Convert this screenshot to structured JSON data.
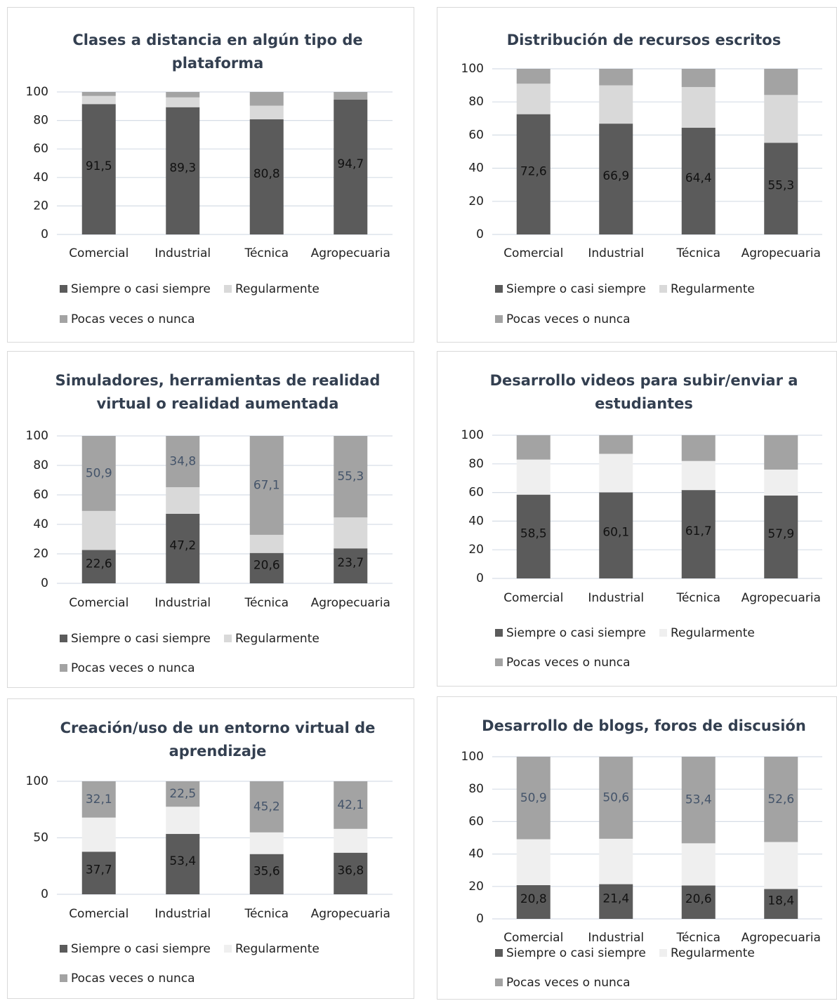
{
  "chart_data": [
    {
      "type": "bar",
      "stacked": true,
      "title": "Clases a distancia en algún tipo de plataforma",
      "categories": [
        "Comercial",
        "Industrial",
        "Técnica",
        "Agropecuaria"
      ],
      "series": [
        {
          "name": "Siempre o casi siempre",
          "color": "#5b5b5b",
          "values": [
            91.5,
            89.3,
            80.8,
            94.7
          ],
          "value_labels": [
            "91,5",
            "89,3",
            "80,8",
            "94,7"
          ]
        },
        {
          "name": "Regularmente",
          "color": "#d9d9d9",
          "values": [
            5.7,
            6.9,
            9.6,
            0
          ]
        },
        {
          "name": "Pocas veces o nunca",
          "color": "#a3a3a3",
          "values": [
            2.8,
            3.8,
            9.6,
            5.3
          ]
        }
      ],
      "ylim": [
        0,
        100
      ],
      "yticks": [
        0,
        20,
        40,
        60,
        80,
        100
      ],
      "grid": true
    },
    {
      "type": "bar",
      "stacked": true,
      "title": "Distribución de recursos escritos",
      "categories": [
        "Comercial",
        "Industrial",
        "Técnica",
        "Agropecuaria"
      ],
      "series": [
        {
          "name": "Siempre o casi siempre",
          "color": "#5b5b5b",
          "values": [
            72.6,
            66.9,
            64.4,
            55.3
          ],
          "value_labels": [
            "72,6",
            "66,9",
            "64,4",
            "55,3"
          ]
        },
        {
          "name": "Regularmente",
          "color": "#d9d9d9",
          "values": [
            18.4,
            23.1,
            24.6,
            28.9
          ]
        },
        {
          "name": "Pocas veces o nunca",
          "color": "#a3a3a3",
          "values": [
            9,
            10,
            11,
            15.8
          ]
        }
      ],
      "ylim": [
        0,
        100
      ],
      "yticks": [
        0,
        20,
        40,
        60,
        80,
        100
      ],
      "grid": true
    },
    {
      "type": "bar",
      "stacked": true,
      "title": "Simuladores, herramientas de realidad virtual o realidad aumentada",
      "categories": [
        "Comercial",
        "Industrial",
        "Técnica",
        "Agropecuaria"
      ],
      "series": [
        {
          "name": "Siempre o casi siempre",
          "color": "#5b5b5b",
          "values": [
            22.6,
            47.2,
            20.6,
            23.7
          ],
          "value_labels": [
            "22,6",
            "47,2",
            "20,6",
            "23,7"
          ]
        },
        {
          "name": "Regularmente",
          "color": "#d9d9d9",
          "values": [
            26.5,
            18.0,
            12.3,
            21.0
          ]
        },
        {
          "name": "Pocas veces o nunca",
          "color": "#a3a3a3",
          "values": [
            50.9,
            34.8,
            67.1,
            55.3
          ],
          "value_labels": [
            "50,9",
            "34,8",
            "67,1",
            "55,3"
          ]
        }
      ],
      "ylim": [
        0,
        100
      ],
      "yticks": [
        0,
        20,
        40,
        60,
        80,
        100
      ],
      "grid": true
    },
    {
      "type": "bar",
      "stacked": true,
      "title": "Desarrollo videos para subir/enviar a estudiantes",
      "categories": [
        "Comercial",
        "Industrial",
        "Técnica",
        "Agropecuaria"
      ],
      "series": [
        {
          "name": "Siempre o casi siempre",
          "color": "#5b5b5b",
          "values": [
            58.5,
            60.1,
            61.7,
            57.9
          ],
          "value_labels": [
            "58,5",
            "60,1",
            "61,7",
            "57,9"
          ]
        },
        {
          "name": "Regularmente",
          "color": "#efefef",
          "values": [
            24.5,
            26.9,
            20.3,
            18.1
          ]
        },
        {
          "name": "Pocas veces o nunca",
          "color": "#a3a3a3",
          "values": [
            17,
            13,
            18,
            24
          ]
        }
      ],
      "ylim": [
        0,
        100
      ],
      "yticks": [
        0,
        20,
        40,
        60,
        80,
        100
      ],
      "grid": true
    },
    {
      "type": "bar",
      "stacked": true,
      "title": "Creación/uso de un entorno virtual de aprendizaje",
      "categories": [
        "Comercial",
        "Industrial",
        "Técnica",
        "Agropecuaria"
      ],
      "series": [
        {
          "name": "Siempre o casi siempre",
          "color": "#5b5b5b",
          "values": [
            37.7,
            53.4,
            35.6,
            36.8
          ],
          "value_labels": [
            "37,7",
            "53,4",
            "35,6",
            "36,8"
          ]
        },
        {
          "name": "Regularmente",
          "color": "#efefef",
          "values": [
            30.2,
            24.1,
            19.2,
            21.1
          ]
        },
        {
          "name": "Pocas veces o nunca",
          "color": "#a3a3a3",
          "values": [
            32.1,
            22.5,
            45.2,
            42.1
          ],
          "value_labels": [
            "32,1",
            "22,5",
            "45,2",
            "42,1"
          ]
        }
      ],
      "ylim": [
        0,
        100
      ],
      "yticks": [
        0,
        50,
        100
      ],
      "grid": true
    },
    {
      "type": "bar",
      "stacked": true,
      "title": "Desarrollo de blogs, foros de discusión",
      "categories": [
        "Comercial",
        "Industrial",
        "Técnica",
        "Agropecuaria"
      ],
      "series": [
        {
          "name": "Siempre o casi siempre",
          "color": "#5b5b5b",
          "values": [
            20.8,
            21.4,
            20.6,
            18.4
          ],
          "value_labels": [
            "20,8",
            "21,4",
            "20,6",
            "18,4"
          ]
        },
        {
          "name": "Regularmente",
          "color": "#efefef",
          "values": [
            28.3,
            28.0,
            26.0,
            29.0
          ]
        },
        {
          "name": "Pocas veces o nunca",
          "color": "#a3a3a3",
          "values": [
            50.9,
            50.6,
            53.4,
            52.6
          ],
          "value_labels": [
            "50,9",
            "50,6",
            "53,4",
            "52,6"
          ]
        }
      ],
      "ylim": [
        0,
        100
      ],
      "yticks": [
        0,
        20,
        40,
        60,
        80,
        100
      ],
      "grid": true
    }
  ]
}
